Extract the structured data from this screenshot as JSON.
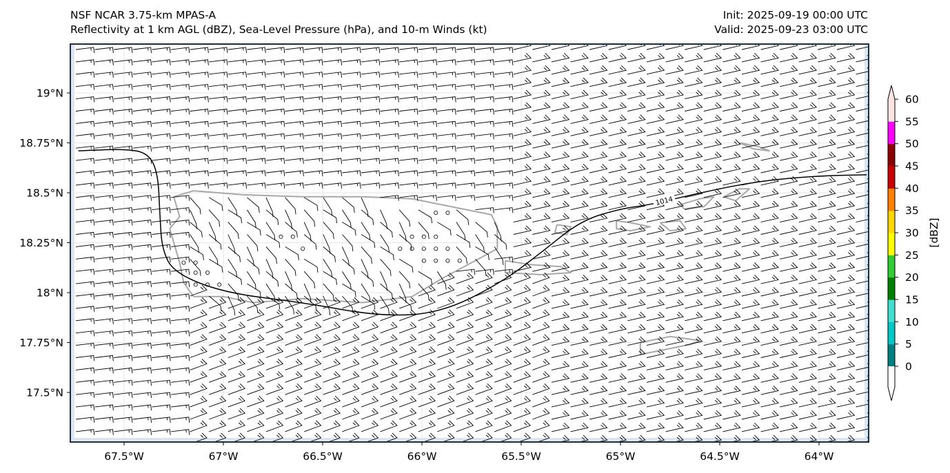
{
  "header": {
    "model": "NSF NCAR 3.75-km MPAS-A",
    "fields": "Reflectivity at 1 km AGL (dBZ), Sea-Level Pressure (hPa), and 10-m Winds (kt)",
    "init": "Init: 2025-09-19 00:00 UTC",
    "valid": "Valid: 2025-09-23 03:00 UTC"
  },
  "map": {
    "region": "Puerto Rico and Virgin Islands",
    "lon_range": [
      -67.75,
      -63.75
    ],
    "lat_range": [
      17.25,
      19.25
    ],
    "lat_ticks": [
      {
        "value": 19.0,
        "label": "19°N"
      },
      {
        "value": 18.75,
        "label": "18.75°N"
      },
      {
        "value": 18.5,
        "label": "18.5°N"
      },
      {
        "value": 18.25,
        "label": "18.25°N"
      },
      {
        "value": 18.0,
        "label": "18°N"
      },
      {
        "value": 17.75,
        "label": "17.75°N"
      },
      {
        "value": 17.5,
        "label": "17.5°N"
      }
    ],
    "lon_ticks": [
      {
        "value": -67.5,
        "label": "67.5°W"
      },
      {
        "value": -67.0,
        "label": "67°W"
      },
      {
        "value": -66.5,
        "label": "66.5°W"
      },
      {
        "value": -66.0,
        "label": "66°W"
      },
      {
        "value": -65.5,
        "label": "65.5°W"
      },
      {
        "value": -65.0,
        "label": "65°W"
      },
      {
        "value": -64.5,
        "label": "64.5°W"
      },
      {
        "value": -64.0,
        "label": "64°W"
      }
    ],
    "isobar": {
      "label": "1014",
      "points": [
        [
          -67.73,
          18.71
        ],
        [
          -67.5,
          18.72
        ],
        [
          -67.38,
          18.7
        ],
        [
          -67.33,
          18.6
        ],
        [
          -67.32,
          18.4
        ],
        [
          -67.31,
          18.22
        ],
        [
          -67.25,
          18.1
        ],
        [
          -67.0,
          18.0
        ],
        [
          -66.6,
          17.95
        ],
        [
          -66.2,
          17.88
        ],
        [
          -65.9,
          17.9
        ],
        [
          -65.6,
          18.05
        ],
        [
          -65.4,
          18.2
        ],
        [
          -65.2,
          18.36
        ],
        [
          -65.0,
          18.42
        ],
        [
          -64.85,
          18.44
        ],
        [
          -64.6,
          18.5
        ],
        [
          -64.3,
          18.56
        ],
        [
          -64.0,
          18.585
        ],
        [
          -63.76,
          18.59
        ]
      ]
    },
    "coastlines": [
      {
        "name": "Puerto Rico",
        "points": [
          [
            -67.25,
            18.48
          ],
          [
            -67.15,
            18.51
          ],
          [
            -66.9,
            18.49
          ],
          [
            -66.6,
            18.48
          ],
          [
            -66.3,
            18.48
          ],
          [
            -66.05,
            18.47
          ],
          [
            -65.9,
            18.44
          ],
          [
            -65.65,
            18.39
          ],
          [
            -65.62,
            18.33
          ],
          [
            -65.62,
            18.22
          ],
          [
            -65.75,
            18.15
          ],
          [
            -65.9,
            18.07
          ],
          [
            -66.05,
            17.98
          ],
          [
            -66.3,
            17.95
          ],
          [
            -66.6,
            17.97
          ],
          [
            -66.85,
            17.95
          ],
          [
            -67.0,
            17.98
          ],
          [
            -67.15,
            17.98
          ],
          [
            -67.2,
            18.05
          ],
          [
            -67.22,
            18.15
          ],
          [
            -67.27,
            18.32
          ],
          [
            -67.22,
            18.38
          ],
          [
            -67.25,
            18.48
          ]
        ]
      },
      {
        "name": "Vieques",
        "points": [
          [
            -65.58,
            18.16
          ],
          [
            -65.45,
            18.14
          ],
          [
            -65.3,
            18.13
          ],
          [
            -65.25,
            18.1
          ],
          [
            -65.4,
            18.09
          ],
          [
            -65.58,
            18.1
          ],
          [
            -65.58,
            18.16
          ]
        ]
      },
      {
        "name": "Culebra",
        "points": [
          [
            -65.32,
            18.34
          ],
          [
            -65.25,
            18.33
          ],
          [
            -65.27,
            18.29
          ],
          [
            -65.33,
            18.3
          ],
          [
            -65.32,
            18.34
          ]
        ]
      },
      {
        "name": "St. Thomas",
        "points": [
          [
            -65.02,
            18.36
          ],
          [
            -64.95,
            18.35
          ],
          [
            -64.85,
            18.33
          ],
          [
            -64.95,
            18.31
          ],
          [
            -65.02,
            18.32
          ],
          [
            -65.02,
            18.36
          ]
        ]
      },
      {
        "name": "St. John",
        "points": [
          [
            -64.8,
            18.35
          ],
          [
            -64.7,
            18.36
          ],
          [
            -64.67,
            18.32
          ],
          [
            -64.75,
            18.31
          ],
          [
            -64.8,
            18.35
          ]
        ]
      },
      {
        "name": "Tortola",
        "points": [
          [
            -64.7,
            18.44
          ],
          [
            -64.6,
            18.47
          ],
          [
            -64.53,
            18.48
          ],
          [
            -64.58,
            18.43
          ],
          [
            -64.68,
            18.42
          ],
          [
            -64.7,
            18.44
          ]
        ]
      },
      {
        "name": "Virgin Gorda",
        "points": [
          [
            -64.48,
            18.48
          ],
          [
            -64.4,
            18.52
          ],
          [
            -64.35,
            18.52
          ],
          [
            -64.42,
            18.46
          ],
          [
            -64.48,
            18.48
          ]
        ]
      },
      {
        "name": "Anegada",
        "points": [
          [
            -64.4,
            18.75
          ],
          [
            -64.3,
            18.73
          ],
          [
            -64.25,
            18.71
          ],
          [
            -64.33,
            18.72
          ],
          [
            -64.4,
            18.75
          ]
        ]
      },
      {
        "name": "St. Croix",
        "points": [
          [
            -64.9,
            17.75
          ],
          [
            -64.75,
            17.78
          ],
          [
            -64.6,
            17.76
          ],
          [
            -64.65,
            17.74
          ],
          [
            -64.9,
            17.69
          ],
          [
            -64.9,
            17.75
          ]
        ]
      }
    ],
    "calm_points": [
      [
        -66.71,
        18.28
      ],
      [
        -66.65,
        18.28
      ],
      [
        -66.6,
        18.22
      ],
      [
        -67.2,
        18.15
      ],
      [
        -67.14,
        18.15
      ],
      [
        -67.14,
        18.1
      ],
      [
        -67.08,
        18.1
      ],
      [
        -67.14,
        18.04
      ],
      [
        -67.08,
        18.04
      ],
      [
        -67.02,
        18.04
      ],
      [
        -66.05,
        18.28
      ],
      [
        -65.99,
        18.28
      ],
      [
        -65.93,
        18.28
      ],
      [
        -66.05,
        18.22
      ],
      [
        -65.99,
        18.22
      ],
      [
        -65.93,
        18.22
      ],
      [
        -65.87,
        18.22
      ],
      [
        -65.99,
        18.16
      ],
      [
        -65.93,
        18.16
      ],
      [
        -65.87,
        18.16
      ],
      [
        -65.81,
        18.16
      ],
      [
        -65.93,
        18.4
      ],
      [
        -65.87,
        18.4
      ],
      [
        -66.11,
        18.22
      ]
    ]
  },
  "colorbar": {
    "label": "[dBZ]",
    "ticks": [
      "0",
      "5",
      "10",
      "15",
      "20",
      "25",
      "30",
      "35",
      "40",
      "45",
      "50",
      "55",
      "60"
    ],
    "colors": [
      "#008080",
      "#00c8c8",
      "#40e0d0",
      "#008000",
      "#32cd32",
      "#ffff00",
      "#ffd700",
      "#ff8000",
      "#c80000",
      "#8b0000",
      "#ff00ff",
      "#ffe4e1"
    ],
    "under_color": "#ffffff",
    "over_color": "#ffe4e1"
  },
  "colors": {
    "frame": "#1f2d3d",
    "ocean_edge": "#dbe6f2",
    "coast": "#a8a8a8",
    "isobar": "#000000",
    "barb": "#000000"
  }
}
